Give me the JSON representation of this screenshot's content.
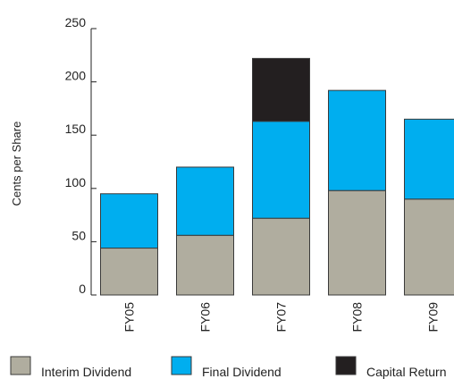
{
  "chart_data": {
    "type": "bar",
    "stacked": true,
    "categories": [
      "FY05",
      "FY06",
      "FY07",
      "FY08",
      "FY09"
    ],
    "series": [
      {
        "name": "Interim Dividend",
        "color": "#b0ad9f",
        "values": [
          44,
          56,
          72,
          98,
          90
        ]
      },
      {
        "name": "Final Dividend",
        "color": "#00aeef",
        "values": [
          51,
          64,
          91,
          94,
          75
        ]
      },
      {
        "name": "Capital Return",
        "color": "#231f20",
        "values": [
          0,
          0,
          59,
          0,
          0
        ]
      }
    ],
    "ylabel": "Cents per Share",
    "ylim": [
      0,
      250
    ],
    "yticks": [
      0,
      50,
      100,
      150,
      200,
      250
    ],
    "grid": false,
    "legend_position": "bottom"
  }
}
